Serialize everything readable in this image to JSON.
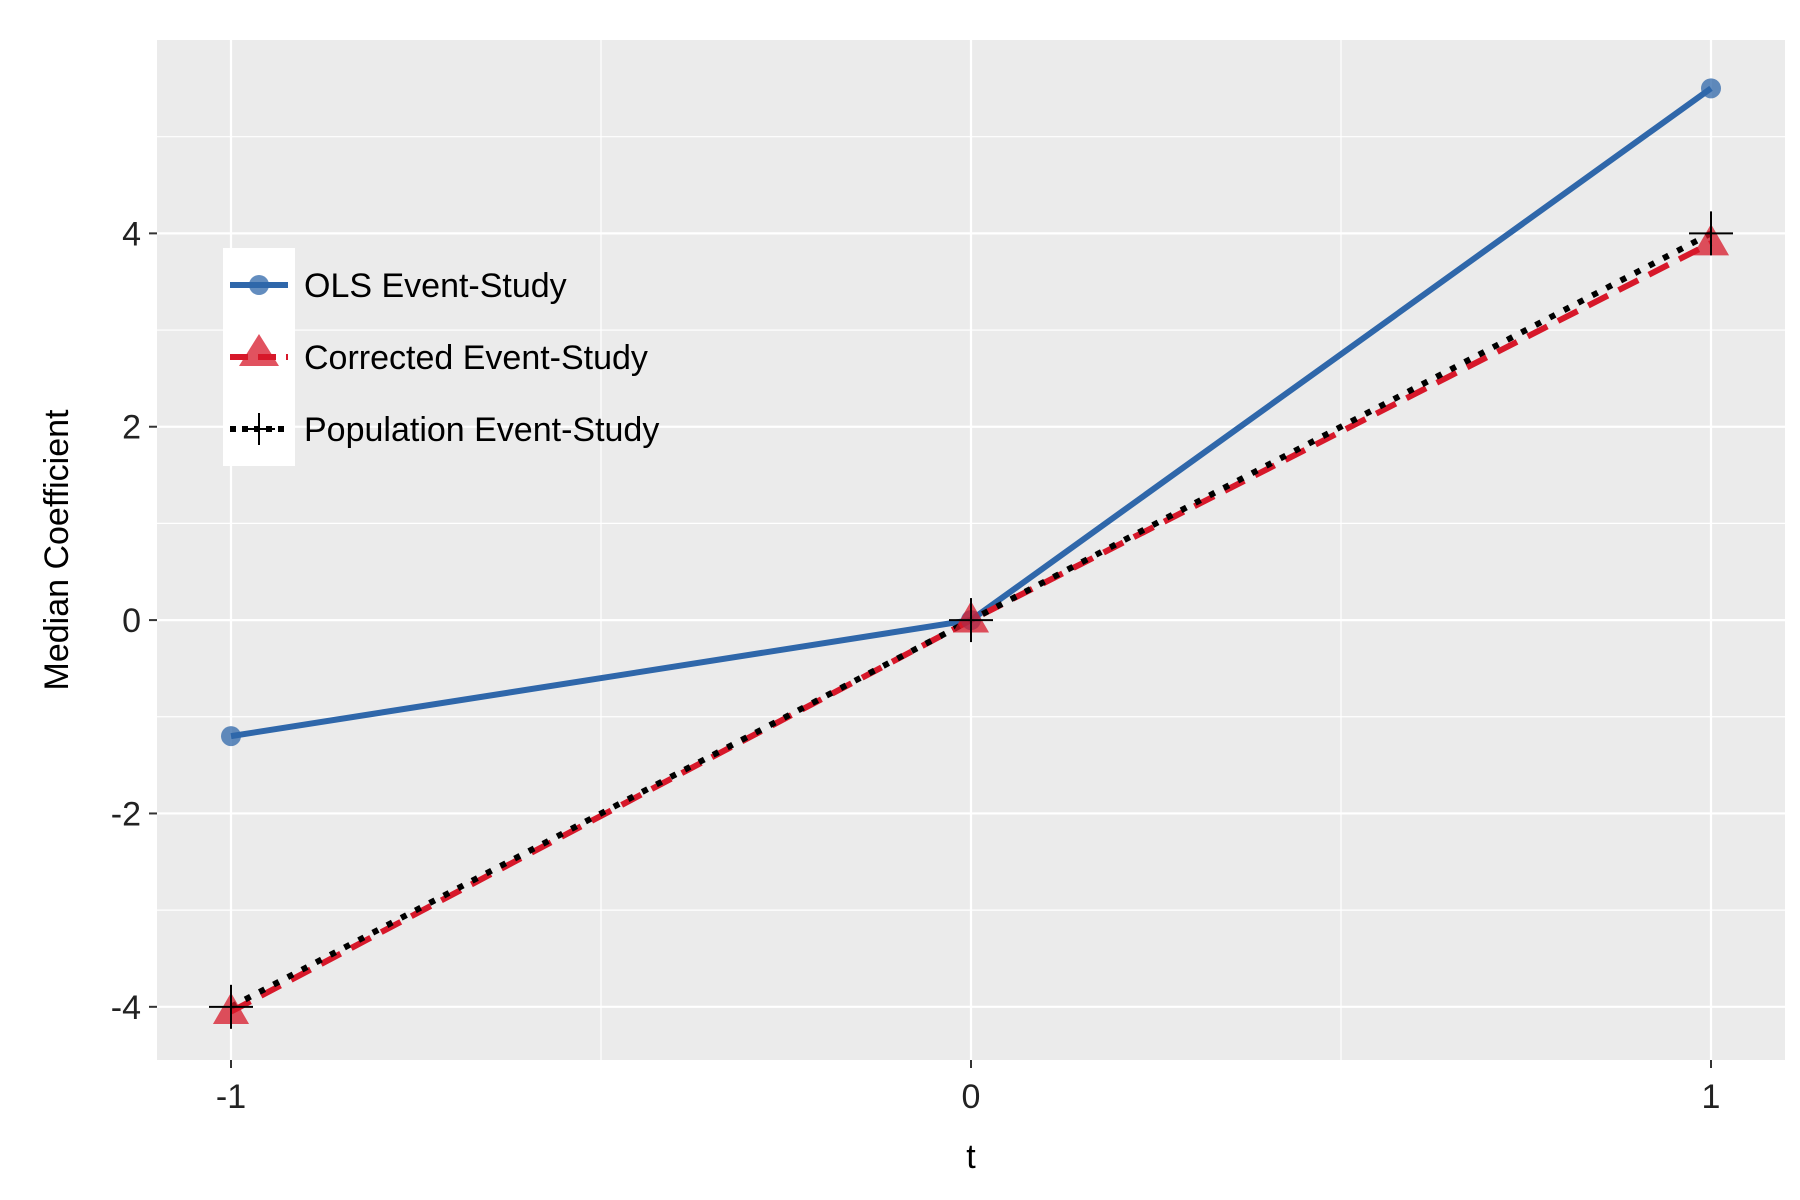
{
  "chart_data": {
    "type": "line",
    "x": [
      -1,
      0,
      1
    ],
    "xlabel": "t",
    "ylabel": "Median Coefficient",
    "x_ticks": [
      -1,
      0,
      1
    ],
    "y_ticks": [
      -4,
      -2,
      0,
      2,
      4
    ],
    "xlim": [
      -1.1,
      1.1
    ],
    "ylim": [
      -4.55,
      6.0
    ],
    "grid": true,
    "legend_position": "top-left",
    "series": [
      {
        "name": "OLS Event-Study",
        "values": [
          -1.2,
          0,
          5.5
        ],
        "color": "#2F67AA",
        "line_style": "solid",
        "marker": "circle"
      },
      {
        "name": "Corrected Event-Study",
        "values": [
          -4.05,
          0.0,
          3.9
        ],
        "color": "#D7182A",
        "line_style": "dashed",
        "marker": "triangle"
      },
      {
        "name": "Population Event-Study",
        "values": [
          -4,
          0,
          4
        ],
        "color": "#000000",
        "line_style": "dotted",
        "marker": "cross"
      }
    ]
  }
}
